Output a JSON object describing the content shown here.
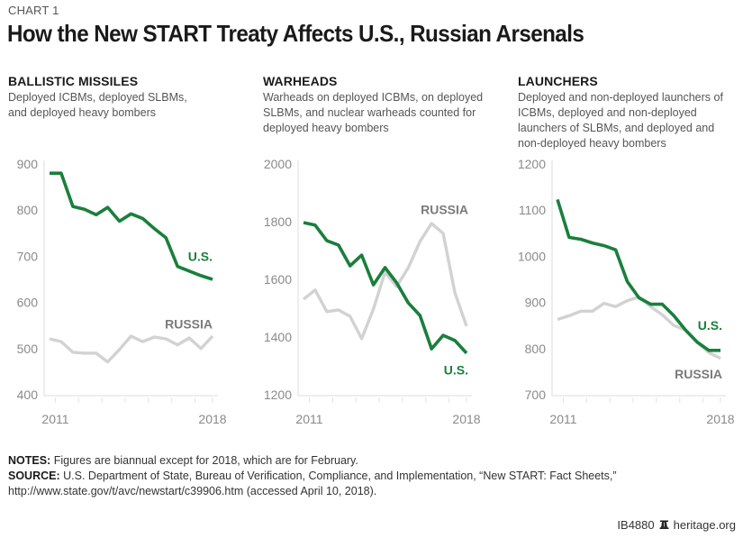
{
  "header": {
    "kicker": "CHART 1",
    "title": "How the New START Treaty Affects U.S., Russian Arsenals"
  },
  "colors": {
    "us": "#1a7f3c",
    "russia": "#d2d2d2",
    "russia_label": "#7a7a7a",
    "axis": "#e3e3e3",
    "tick_label": "#8a8a8a"
  },
  "chart_data": [
    {
      "type": "line",
      "title": "BALLISTIC MISSILES",
      "subtitle_lines": [
        "Deployed ICBMs, deployed SLBMs,",
        "and deployed heavy bombers"
      ],
      "xlabel": "",
      "ylabel": "",
      "x": [
        "2011a",
        "2011b",
        "2012a",
        "2012b",
        "2013a",
        "2013b",
        "2014a",
        "2014b",
        "2015a",
        "2015b",
        "2016a",
        "2016b",
        "2017a",
        "2017b",
        "2018"
      ],
      "x_tick_labels": [
        "2011",
        "2018"
      ],
      "ylim": [
        400,
        900
      ],
      "yticks": [
        400,
        500,
        600,
        700,
        800,
        900
      ],
      "series": [
        {
          "name": "U.S.",
          "key": "us",
          "values": [
            880,
            880,
            808,
            802,
            790,
            806,
            776,
            792,
            782,
            760,
            740,
            678,
            668,
            658,
            650
          ]
        },
        {
          "name": "RUSSIA",
          "key": "russia",
          "values": [
            521,
            515,
            492,
            490,
            490,
            471,
            498,
            527,
            515,
            525,
            521,
            508,
            523,
            500,
            527
          ]
        }
      ],
      "labels": [
        {
          "text": "U.S.",
          "key": "us",
          "at_value": 700
        },
        {
          "text": "RUSSIA",
          "key": "russia",
          "at_value": 553
        }
      ]
    },
    {
      "type": "line",
      "title": "WARHEADS",
      "subtitle_lines": [
        "Warheads on deployed ICBMs, on deployed",
        "SLBMs, and nuclear warheads counted for",
        "deployed heavy bombers"
      ],
      "xlabel": "",
      "ylabel": "",
      "x": [
        "2011a",
        "2011b",
        "2012a",
        "2012b",
        "2013a",
        "2013b",
        "2014a",
        "2014b",
        "2015a",
        "2015b",
        "2016a",
        "2016b",
        "2017a",
        "2017b",
        "2018"
      ],
      "x_tick_labels": [
        "2011",
        "2018"
      ],
      "ylim": [
        1200,
        2000
      ],
      "yticks": [
        1200,
        1400,
        1600,
        1800,
        2000
      ],
      "series": [
        {
          "name": "U.S.",
          "key": "us",
          "values": [
            1797,
            1788,
            1734,
            1719,
            1647,
            1684,
            1581,
            1641,
            1588,
            1518,
            1475,
            1359,
            1406,
            1388,
            1344
          ]
        },
        {
          "name": "RUSSIA",
          "key": "russia",
          "values": [
            1531,
            1563,
            1488,
            1494,
            1472,
            1394,
            1497,
            1625,
            1575,
            1641,
            1731,
            1794,
            1759,
            1553,
            1438
          ]
        }
      ],
      "labels": [
        {
          "text": "RUSSIA",
          "key": "russia",
          "at_value": 1842
        },
        {
          "text": "U.S.",
          "key": "us",
          "at_value": 1286
        }
      ]
    },
    {
      "type": "line",
      "title": "LAUNCHERS",
      "subtitle_lines": [
        "Deployed and non-deployed launchers of",
        "ICBMs, deployed and non-deployed",
        "launchers of SLBMs, and deployed and",
        "non-deployed heavy bombers"
      ],
      "xlabel": "",
      "ylabel": "",
      "x": [
        "2011a",
        "2011b",
        "2012a",
        "2012b",
        "2013a",
        "2013b",
        "2014a",
        "2014b",
        "2015a",
        "2015b",
        "2016a",
        "2016b",
        "2017a",
        "2017b",
        "2018"
      ],
      "x_tick_labels": [
        "2011",
        "2018"
      ],
      "ylim": [
        700,
        1200
      ],
      "yticks": [
        700,
        800,
        900,
        1000,
        1100,
        1200
      ],
      "series": [
        {
          "name": "U.S.",
          "key": "us",
          "values": [
            1123,
            1041,
            1037,
            1029,
            1023,
            1014,
            945,
            910,
            896,
            896,
            871,
            840,
            814,
            796,
            796
          ]
        },
        {
          "name": "RUSSIA",
          "key": "russia",
          "values": [
            863,
            871,
            881,
            881,
            898,
            891,
            904,
            912,
            891,
            873,
            850,
            840,
            814,
            791,
            779
          ]
        }
      ],
      "labels": [
        {
          "text": "U.S.",
          "key": "us",
          "at_value": 850
        },
        {
          "text": "RUSSIA",
          "key": "russia",
          "at_value": 745
        }
      ]
    }
  ],
  "notes": {
    "notes_label": "NOTES:",
    "notes_text": " Figures are biannual except for 2018, which are for February.",
    "source_label": "SOURCE:",
    "source_text": " U.S. Department of State, Bureau of Verification, Compliance, and Implementation, “New START: Fact Sheets,” http://www.state.gov/t/avc/newstart/c39906.htm (accessed April 10, 2018)."
  },
  "footer": {
    "code": "IB4880",
    "icon": "liberty-bell-icon",
    "site": "heritage.org"
  }
}
